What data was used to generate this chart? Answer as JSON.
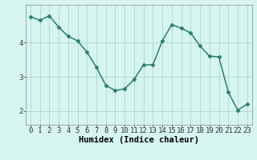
{
  "x": [
    0,
    1,
    2,
    3,
    4,
    5,
    6,
    7,
    8,
    9,
    10,
    11,
    12,
    13,
    14,
    15,
    16,
    17,
    18,
    19,
    20,
    21,
    22,
    23
  ],
  "y": [
    4.75,
    4.65,
    4.78,
    4.45,
    4.18,
    4.05,
    3.72,
    3.28,
    2.75,
    2.6,
    2.65,
    2.92,
    3.35,
    3.35,
    4.05,
    4.52,
    4.42,
    4.28,
    3.9,
    3.6,
    3.58,
    2.55,
    2.03,
    2.2
  ],
  "xlabel": "Humidex (Indice chaleur)",
  "background_color": "#d6f5f0",
  "line_color": "#2d7d6e",
  "marker_color": "#2d7d6e",
  "grid_color": "#aad8d0",
  "ylim": [
    1.6,
    5.1
  ],
  "xlim": [
    -0.5,
    23.5
  ],
  "yticks": [
    2,
    3,
    4
  ],
  "xticks": [
    0,
    1,
    2,
    3,
    4,
    5,
    6,
    7,
    8,
    9,
    10,
    11,
    12,
    13,
    14,
    15,
    16,
    17,
    18,
    19,
    20,
    21,
    22,
    23
  ],
  "tick_fontsize": 6.5,
  "xlabel_fontsize": 7.5,
  "linewidth": 1.1,
  "markersize": 2.5
}
